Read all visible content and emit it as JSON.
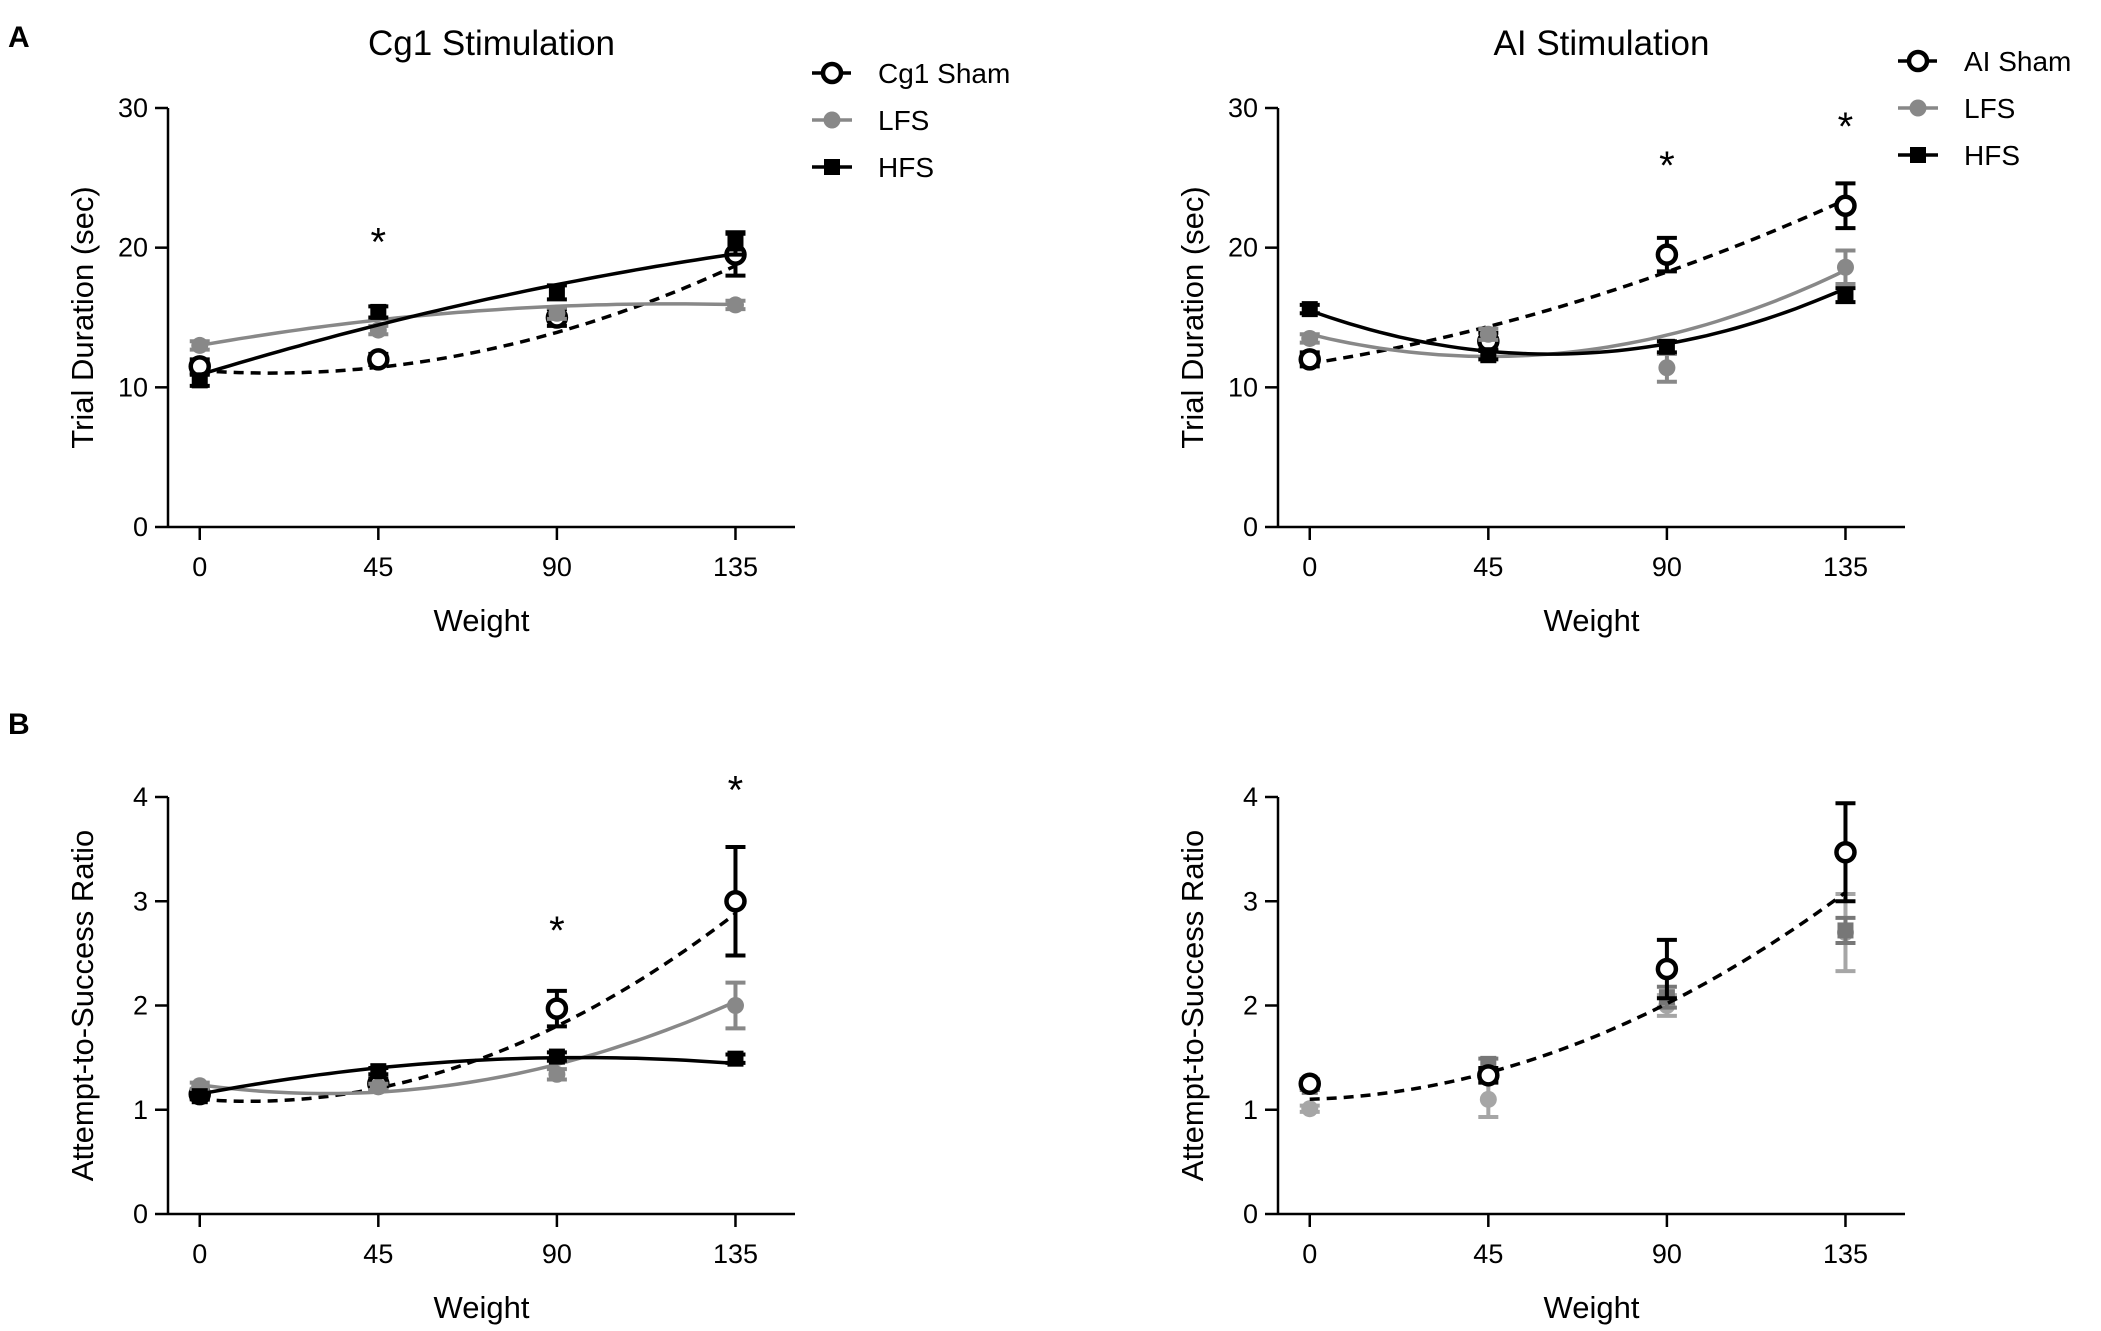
{
  "panel_labels": [
    "A",
    "B"
  ],
  "colors": {
    "sham": "#000000",
    "lfs": "#888888",
    "lfs_light": "#a6a6a6",
    "hfs": "#000000"
  },
  "chart_data": [
    {
      "id": "cg1-duration",
      "panel": "A",
      "type": "line",
      "title": "Cg1 Stimulation",
      "xlabel": "Weight",
      "ylabel": "Trial Duration (sec)",
      "xlim": [
        -8,
        150
      ],
      "ylim": [
        0,
        30
      ],
      "xticks": [
        0,
        45,
        90,
        135
      ],
      "yticks": [
        0,
        10,
        20,
        30
      ],
      "legend_position": "top-right",
      "series": [
        {
          "name": "Cg1 Sham",
          "marker": "open-circle",
          "color": "#000000",
          "dashed": true,
          "x": [
            0,
            45,
            90,
            135
          ],
          "y": [
            11.5,
            12.0,
            15.0,
            19.5
          ],
          "err": [
            0.5,
            0.4,
            0.6,
            1.5
          ],
          "fit": [
            11.2,
            -0.02,
            0.00056
          ]
        },
        {
          "name": "LFS",
          "marker": "circle",
          "color": "#888888",
          "dashed": false,
          "x": [
            0,
            45,
            90,
            135
          ],
          "y": [
            13.0,
            14.1,
            15.3,
            15.9
          ],
          "err": [
            0.3,
            0.3,
            0.4,
            0.3
          ],
          "fit": [
            13.0,
            0.05,
            -0.00021
          ]
        },
        {
          "name": "HFS",
          "marker": "square",
          "color": "#000000",
          "dashed": false,
          "x": [
            0,
            45,
            90,
            135
          ],
          "y": [
            10.5,
            15.4,
            16.8,
            20.3
          ],
          "err": [
            0.4,
            0.4,
            0.5,
            0.8
          ],
          "fit": [
            10.9,
            0.087,
            -0.00017
          ]
        }
      ],
      "annotations": [
        {
          "x": 45,
          "y": 21,
          "text": "*"
        }
      ]
    },
    {
      "id": "ai-duration",
      "panel": "",
      "type": "line",
      "title": "AI Stimulation",
      "xlabel": "Weight",
      "ylabel": "Trial Duration (sec)",
      "xlim": [
        -8,
        150
      ],
      "ylim": [
        0,
        30
      ],
      "xticks": [
        0,
        45,
        90,
        135
      ],
      "yticks": [
        0,
        10,
        20,
        30
      ],
      "legend_position": "top-right",
      "series": [
        {
          "name": "AI Sham",
          "marker": "open-circle",
          "color": "#000000",
          "dashed": true,
          "x": [
            0,
            45,
            90,
            135
          ],
          "y": [
            12.0,
            13.3,
            19.5,
            23.0
          ],
          "err": [
            0.5,
            0.6,
            1.2,
            1.6
          ],
          "fit": [
            11.7,
            0.045,
            0.00031
          ]
        },
        {
          "name": "LFS",
          "marker": "circle",
          "color": "#888888",
          "dashed": false,
          "x": [
            0,
            45,
            90,
            135
          ],
          "y": [
            13.5,
            13.8,
            11.4,
            18.6
          ],
          "err": [
            0.3,
            0.4,
            1.0,
            1.2
          ],
          "fit": [
            13.8,
            -0.07,
            0.00077
          ]
        },
        {
          "name": "HFS",
          "marker": "square",
          "color": "#000000",
          "dashed": false,
          "x": [
            0,
            45,
            90,
            135
          ],
          "y": [
            15.6,
            12.3,
            12.9,
            16.6
          ],
          "err": [
            0.3,
            0.3,
            0.4,
            0.5
          ],
          "fit": [
            15.5,
            -0.103,
            0.00085
          ]
        }
      ],
      "annotations": [
        {
          "x": 90,
          "y": 26.5,
          "text": "*"
        },
        {
          "x": 135,
          "y": 29.3,
          "text": "*"
        }
      ]
    },
    {
      "id": "cg1-ratio",
      "panel": "B",
      "type": "line",
      "title": "",
      "xlabel": "Weight",
      "ylabel": "Attempt-to-Success Ratio",
      "xlim": [
        -8,
        150
      ],
      "ylim": [
        0,
        4
      ],
      "xticks": [
        0,
        45,
        90,
        135
      ],
      "yticks": [
        0,
        1,
        2,
        3,
        4
      ],
      "legend_position": "",
      "series": [
        {
          "name": "Sham",
          "marker": "open-circle",
          "color": "#000000",
          "dashed": true,
          "x": [
            0,
            45,
            90,
            135
          ],
          "y": [
            1.15,
            1.25,
            1.97,
            3.0
          ],
          "err": [
            0.04,
            0.05,
            0.17,
            0.52
          ],
          "fit": [
            1.1,
            -0.003,
            0.00012
          ]
        },
        {
          "name": "LFS",
          "marker": "circle",
          "color": "#888888",
          "dashed": false,
          "x": [
            0,
            45,
            90,
            135
          ],
          "y": [
            1.23,
            1.22,
            1.34,
            2.0
          ],
          "err": [
            0.03,
            0.03,
            0.05,
            0.22
          ],
          "fit": [
            1.24,
            -0.0053,
            8.3e-05
          ]
        },
        {
          "name": "HFS",
          "marker": "square",
          "color": "#000000",
          "dashed": false,
          "x": [
            0,
            45,
            90,
            135
          ],
          "y": [
            1.13,
            1.37,
            1.51,
            1.49
          ],
          "err": [
            0.03,
            0.03,
            0.04,
            0.04
          ],
          "fit": [
            1.15,
            0.0073,
            -3.8e-05
          ]
        }
      ],
      "annotations": [
        {
          "x": 90,
          "y": 2.8,
          "text": "*"
        },
        {
          "x": 135,
          "y": 4.15,
          "text": "*"
        }
      ]
    },
    {
      "id": "ai-ratio",
      "panel": "",
      "type": "line",
      "title": "",
      "xlabel": "Weight",
      "ylabel": "Attempt-to-Success Ratio",
      "xlim": [
        -8,
        150
      ],
      "ylim": [
        0,
        4
      ],
      "xticks": [
        0,
        45,
        90,
        135
      ],
      "yticks": [
        0,
        1,
        2,
        3,
        4
      ],
      "legend_position": "",
      "series": [
        {
          "name": "LFS",
          "marker": "circle",
          "color": "#a6a6a6",
          "dashed": false,
          "x": [
            0,
            45,
            90,
            135
          ],
          "y": [
            1.01,
            1.1,
            2.0,
            2.7
          ],
          "err": [
            0.03,
            0.17,
            0.1,
            0.37
          ],
          "fit": null
        },
        {
          "name": "HFS",
          "marker": "square",
          "color": "#777777",
          "dashed": false,
          "x": [
            0,
            45,
            90,
            135
          ],
          "y": [
            1.22,
            1.44,
            2.08,
            2.72
          ],
          "err": [
            0.03,
            0.05,
            0.1,
            0.12
          ],
          "fit": null
        },
        {
          "name": "Sham",
          "marker": "open-circle",
          "color": "#000000",
          "dashed": true,
          "x": [
            0,
            45,
            90,
            135
          ],
          "y": [
            1.25,
            1.33,
            2.35,
            3.47
          ],
          "err": [
            0.04,
            0.07,
            0.28,
            0.47
          ],
          "fit": [
            1.1,
            0.0012,
            0.0001
          ]
        }
      ],
      "annotations": []
    }
  ]
}
